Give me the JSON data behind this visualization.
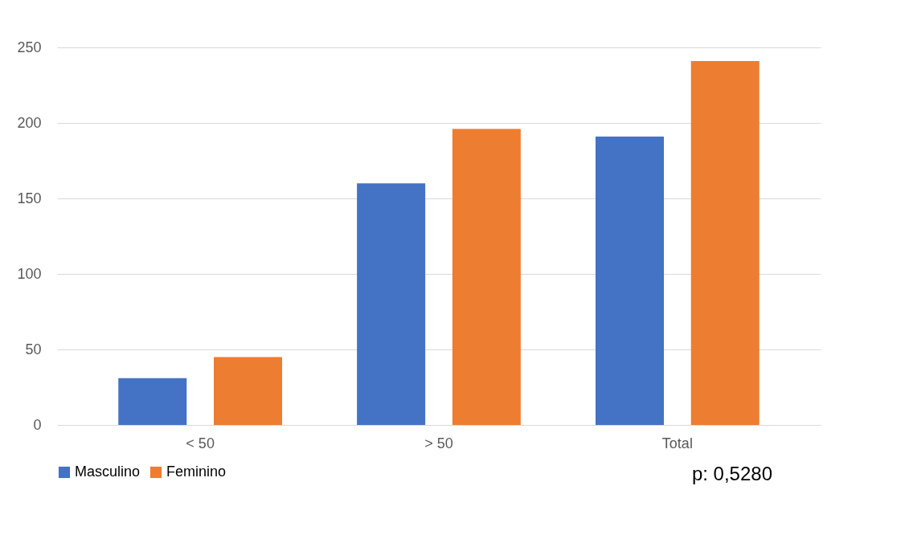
{
  "chart_data": {
    "type": "bar",
    "categories": [
      "< 50",
      "> 50",
      "Total"
    ],
    "series": [
      {
        "name": "Masculino",
        "color": "#4472c4",
        "values": [
          31,
          160,
          191
        ]
      },
      {
        "name": "Feminino",
        "color": "#ed7d31",
        "values": [
          45,
          196,
          241
        ]
      }
    ],
    "ylim": [
      0,
      250
    ],
    "yticks": [
      0,
      50,
      100,
      150,
      200,
      250
    ],
    "grid": "y",
    "legend": "bottom",
    "annotations": [
      "p: 0,5280"
    ]
  }
}
